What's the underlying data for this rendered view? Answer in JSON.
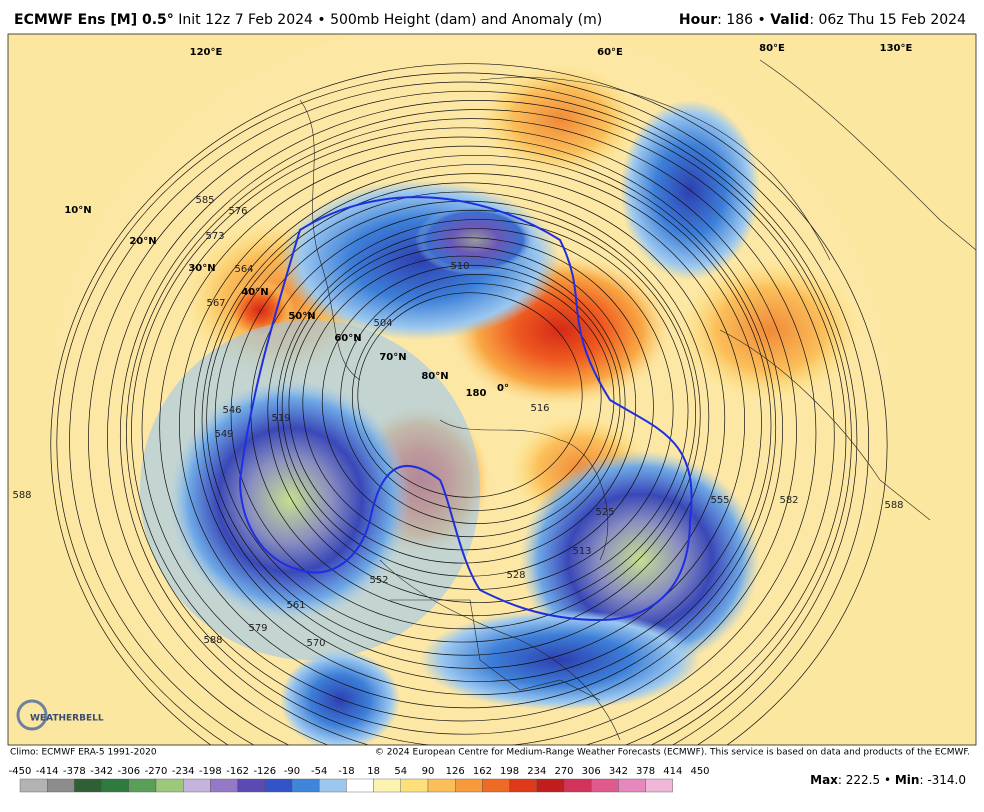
{
  "header": {
    "title_bold": "ECMWF Ens [M] 0.5°",
    "title_rest": "Init 12z 7 Feb 2024 • 500mb Height (dam) and Anomaly (m)",
    "hour_label": "Hour",
    "hour_value": ": 186 •",
    "valid_label": "Valid",
    "valid_value": ": 06z Thu 15 Feb 2024"
  },
  "map": {
    "latitude_labels": [
      "10°N",
      "20°N",
      "30°N",
      "40°N",
      "50°N",
      "60°N",
      "70°N",
      "80°N"
    ],
    "longitude_labels": [
      "180",
      "0°",
      "120°E",
      "60°E",
      "80°E",
      "130°E"
    ],
    "contour_labels": [
      "510",
      "504",
      "516",
      "585",
      "576",
      "564",
      "567",
      "573",
      "549",
      "519",
      "546",
      "561",
      "570",
      "579",
      "588",
      "552",
      "555",
      "582",
      "525",
      "528",
      "513",
      "588",
      "588"
    ],
    "logo": "WEATHERBELL"
  },
  "footer": {
    "climo": "Climo: ECMWF ERA-5 1991-2020",
    "copyright": "© 2024 European Centre for Medium-Range Weather Forecasts (ECMWF). This service is based on data and products of the ECMWF."
  },
  "colorbar": {
    "ticks": [
      -450,
      -414,
      -378,
      -342,
      -306,
      -270,
      -234,
      -198,
      -162,
      -126,
      -90,
      -54,
      -18,
      18,
      54,
      90,
      126,
      162,
      198,
      234,
      270,
      306,
      342,
      378,
      414,
      450
    ],
    "colors": [
      "#b3b3b3",
      "#8c8c8c",
      "#2f5f35",
      "#2f7a3e",
      "#5a9f58",
      "#9cc979",
      "#c3b3dd",
      "#9579c6",
      "#5b49b4",
      "#3353c8",
      "#3f86db",
      "#9cc8f0",
      "#ffffff",
      "#fdf3b0",
      "#fde07a",
      "#fbbf5a",
      "#f79a3c",
      "#ef6b25",
      "#de3a1a",
      "#c21d1d",
      "#d3325a",
      "#e05a8e",
      "#e688bd",
      "#efb6d8"
    ]
  },
  "stats": {
    "max_label": "Max",
    "max": 222.5,
    "min_label": "Min",
    "min": {
      "value": -314,
      "label": "-314.0"
    }
  }
}
